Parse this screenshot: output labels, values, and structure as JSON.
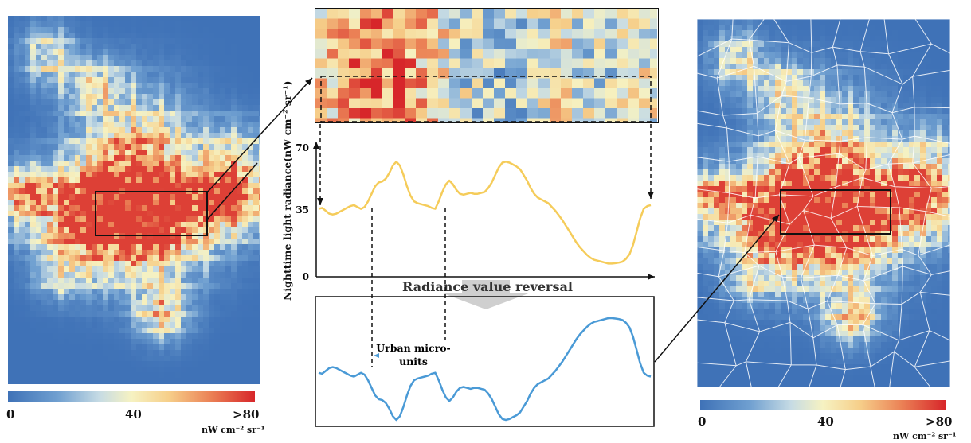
{
  "left_legend": {
    "min": "0",
    "mid": "40",
    "max": ">80",
    "unit": "nW cm⁻² sr⁻¹"
  },
  "right_legend": {
    "min": "0",
    "mid": "40",
    "max": ">80",
    "unit": "nW cm⁻² sr⁻¹"
  },
  "profile": {
    "ylabel": "Nighttime light radiance(nW cm⁻² sr⁻¹)",
    "yticks": [
      "70",
      "35",
      "0"
    ],
    "values": [
      36,
      36.5,
      35,
      33.5,
      33,
      33.5,
      34.5,
      35.5,
      36.5,
      37.5,
      38,
      37,
      36,
      37,
      40,
      44,
      48,
      50,
      50.5,
      52,
      55,
      59,
      61,
      59,
      54,
      48,
      43,
      40,
      39,
      38.5,
      38,
      37.5,
      36.5,
      36,
      40,
      45,
      49,
      51,
      49,
      46,
      44,
      43.5,
      44,
      44.5,
      44,
      44,
      44.5,
      45,
      47,
      50,
      54,
      58,
      60.5,
      61,
      60.5,
      59.5,
      58.5,
      57,
      54,
      51,
      47,
      44,
      42,
      41,
      40,
      39,
      37,
      35,
      32.5,
      30,
      27,
      24,
      21,
      18,
      15.5,
      13.5,
      11.5,
      10,
      9,
      8.5,
      8,
      7.5,
      7,
      7,
      7.2,
      7.5,
      8,
      9.5,
      12,
      17,
      24,
      31,
      36,
      37.5,
      38
    ],
    "line_color": "#f5cc5a"
  },
  "reversal_label": "Radiance value reversal",
  "reversed_profile": {
    "line_color": "#4a9ad6"
  },
  "annotation": {
    "line1": "Urban micro-",
    "line2": "units"
  },
  "colors": {
    "low": "#3f72b7",
    "mid": "#f6f2c2",
    "high": "#d7262a",
    "boundary": "#ffffff"
  }
}
